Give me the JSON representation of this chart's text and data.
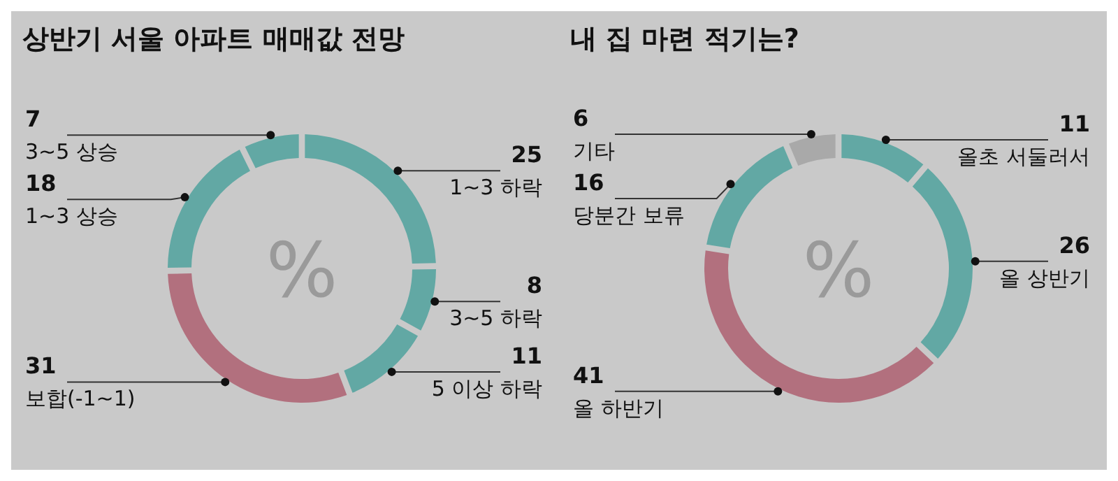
{
  "chart_data": [
    {
      "type": "donut",
      "title": "상반기 서울 아파트 매매값 전망",
      "annotations": [
        "%"
      ],
      "data_labels": true,
      "categories": [
        "1~3 하락",
        "3~5 하락",
        "5 이상 하락",
        "보합(-1~1)",
        "1~3 상승",
        "3~5 상승"
      ],
      "values": [
        25,
        8,
        11,
        31,
        18,
        7
      ],
      "colors": [
        "#62a8a4",
        "#62a8a4",
        "#62a8a4",
        "#b2707e",
        "#62a8a4",
        "#62a8a4"
      ]
    },
    {
      "type": "donut",
      "title": "내 집 마련 적기는?",
      "annotations": [
        "%"
      ],
      "data_labels": true,
      "categories": [
        "올초 서둘러서",
        "올 상반기",
        "올 하반기",
        "당분간 보류",
        "기타"
      ],
      "values": [
        11,
        26,
        41,
        16,
        6
      ],
      "colors": [
        "#62a8a4",
        "#62a8a4",
        "#b2707e",
        "#62a8a4",
        "#a9a9a9"
      ]
    }
  ]
}
